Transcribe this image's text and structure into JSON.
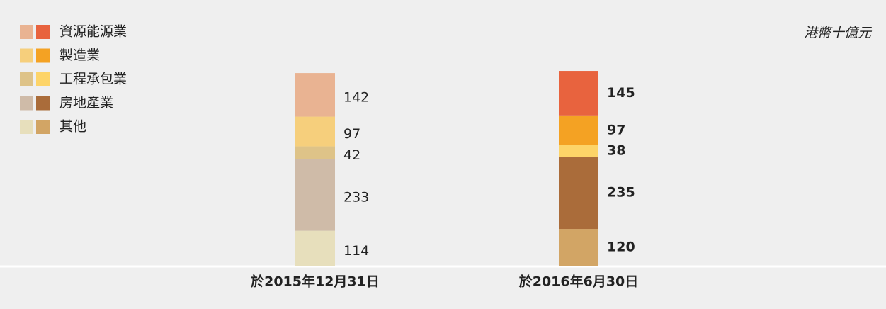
{
  "chart_data": {
    "type": "stacked_bar",
    "unit_label": "港幣十億元",
    "categories": [
      "於2015年12月31日",
      "於2016年6月30日"
    ],
    "series": [
      {
        "name": "其他",
        "colors": [
          "#e7dfbc",
          "#d2a565"
        ],
        "values": [
          114,
          120
        ]
      },
      {
        "name": "房地產業",
        "colors": [
          "#cfbba8",
          "#aa6c3a"
        ],
        "values": [
          233,
          235
        ]
      },
      {
        "name": "工程承包業",
        "colors": [
          "#dec388",
          "#fdd468"
        ],
        "values": [
          42,
          38
        ]
      },
      {
        "name": "製造業",
        "colors": [
          "#f6cf7c",
          "#f4a223"
        ],
        "values": [
          97,
          97
        ]
      },
      {
        "name": "資源能源業",
        "colors": [
          "#e9b392",
          "#e8633e"
        ],
        "values": [
          142,
          145
        ]
      }
    ]
  }
}
